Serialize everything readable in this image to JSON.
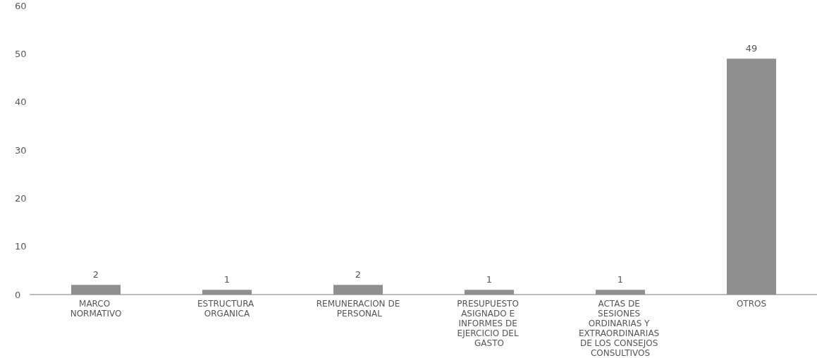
{
  "chart_data": {
    "type": "bar",
    "categories": [
      "MARCO NORMATIVO",
      "ESTRUCTURA ORGANICA",
      "REMUNERACION DE PERSONAL",
      "PRESUPUESTO ASIGNADO E INFORMES DE EJERCICIO DEL GASTO",
      "ACTAS DE SESIONES ORDINARIAS Y EXTRAORDINARIAS DE LOS CONSEJOS CONSULTIVOS",
      "OTROS"
    ],
    "values": [
      2,
      1,
      2,
      1,
      1,
      49
    ],
    "color": "#8f8f8f",
    "ylim": [
      0,
      60
    ],
    "yticks": [
      0,
      10,
      20,
      30,
      40,
      50,
      60
    ],
    "grid": false,
    "data_labels": true
  }
}
